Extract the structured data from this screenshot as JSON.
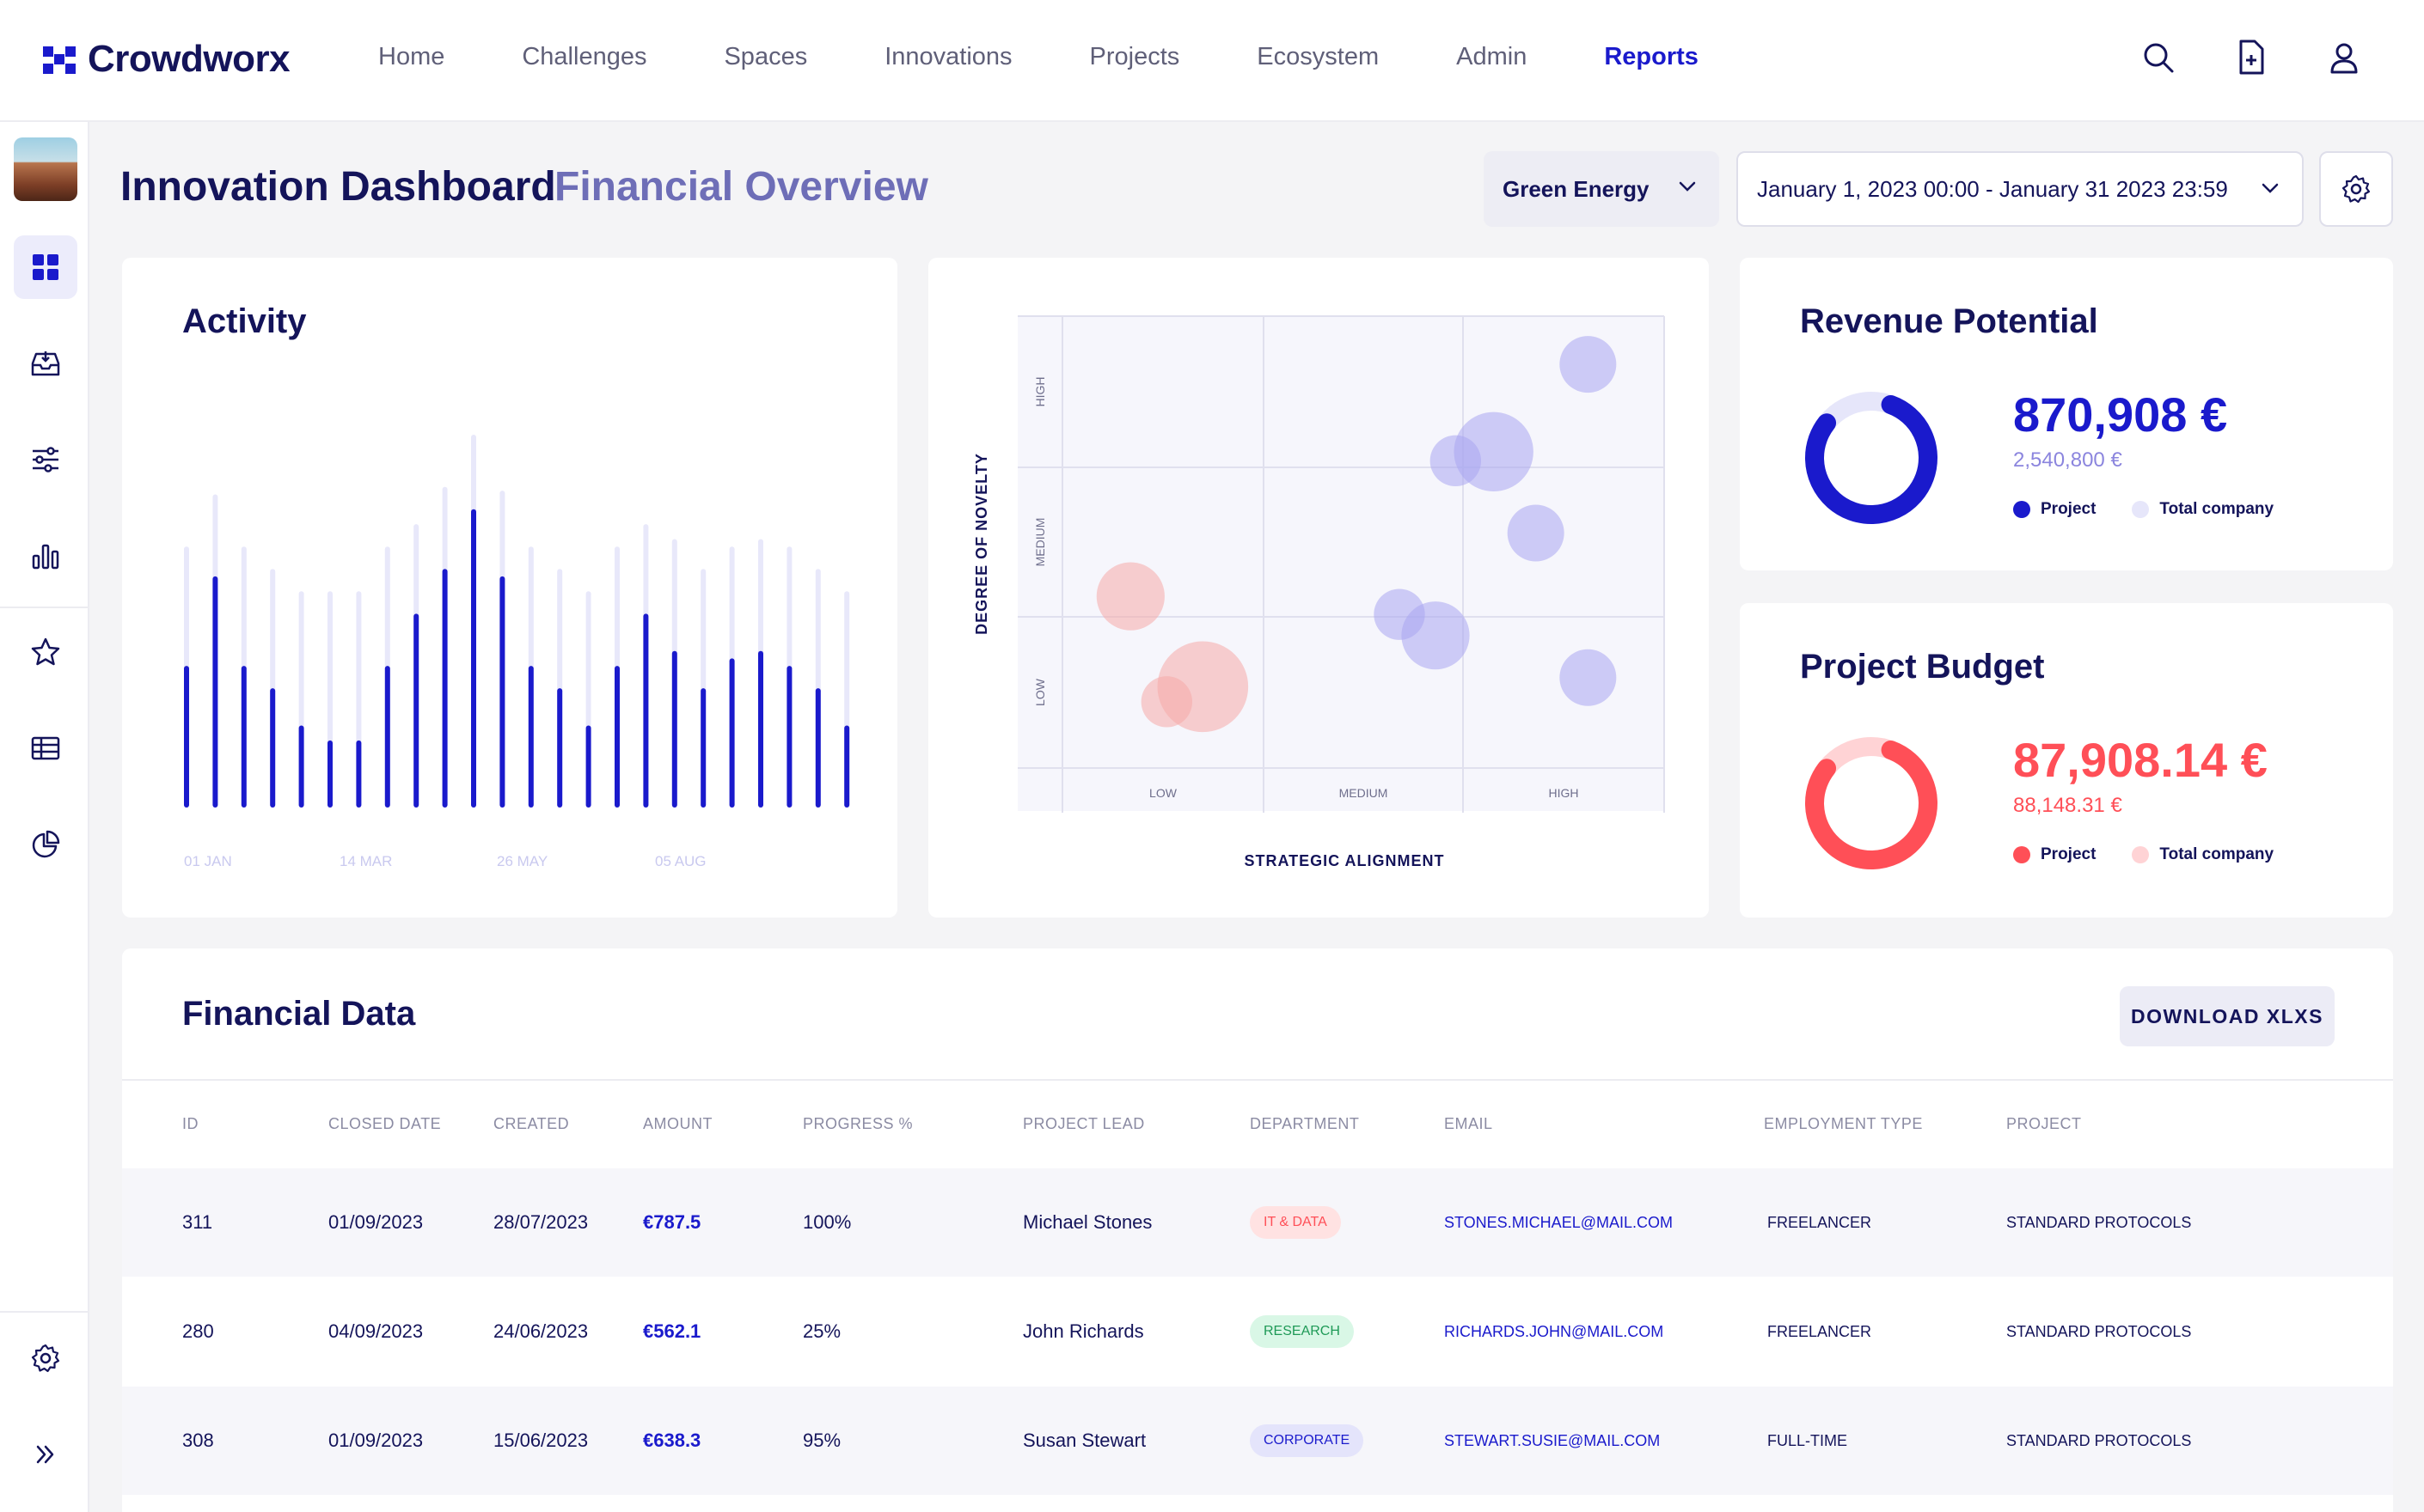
{
  "brand": {
    "name": "Crowdworx",
    "accent": "#1a1acc"
  },
  "nav": {
    "items": [
      "Home",
      "Challenges",
      "Spaces",
      "Innovations",
      "Projects",
      "Ecosystem",
      "Admin",
      "Reports"
    ],
    "active": "Reports"
  },
  "top_icons": [
    "search-icon",
    "new-document-icon",
    "user-icon"
  ],
  "sidebar": {
    "icons": [
      "dashboard-icon",
      "inbox-icon",
      "sliders-icon",
      "bar-chart-icon",
      "star-icon",
      "table-icon",
      "pie-chart-icon",
      "settings-icon",
      "expand-icon"
    ],
    "active": "dashboard-icon"
  },
  "header": {
    "title": "Innovation Dashboard",
    "subtitle": "Financial Overview",
    "filter": "Green Energy",
    "date_range": "January 1, 2023 00:00 - January 31 2023 23:59"
  },
  "activity": {
    "title": "Activity",
    "x_labels": [
      "01 JAN",
      "14 MAR",
      "26 MAY",
      "05 AUG"
    ]
  },
  "scatter": {
    "xlabel": "STRATEGIC ALIGNMENT",
    "ylabel": "DEGREE OF NOVELTY",
    "x_ticks": [
      "LOW",
      "MEDIUM",
      "HIGH"
    ],
    "y_ticks": [
      "LOW",
      "MEDIUM",
      "HIGH"
    ]
  },
  "revenue": {
    "title": "Revenue Potential",
    "value": "870,908 €",
    "total": "2,540,800 €",
    "legend_project": "Project",
    "legend_total": "Total company",
    "fraction": 0.8,
    "color": "#1a1acc",
    "track_color": "#e6e6fa"
  },
  "budget": {
    "title": "Project Budget",
    "value": "87,908.14 €",
    "total": "88,148.31 €",
    "legend_project": "Project",
    "legend_total": "Total company",
    "fraction": 0.8,
    "color": "#ff4f57",
    "track_color": "#ffd3d5"
  },
  "financial": {
    "title": "Financial Data",
    "download_label": "DOWNLOAD XLXS",
    "columns": [
      "ID",
      "CLOSED DATE",
      "CREATED",
      "AMOUNT",
      "PROGRESS %",
      "PROJECT LEAD",
      "DEPARTMENT",
      "EMAIL",
      "EMPLOYMENT TYPE",
      "PROJECT"
    ],
    "rows": [
      {
        "id": "311",
        "closed": "01/09/2023",
        "created": "28/07/2023",
        "amount": "€787.5",
        "progress": "100%",
        "lead": "Michael Stones",
        "department": "IT & DATA",
        "dept_kind": "it",
        "email": "STONES.MICHAEL@MAIL.COM",
        "employment": "FREELANCER",
        "project": "STANDARD PROTOCOLS"
      },
      {
        "id": "280",
        "closed": "04/09/2023",
        "created": "24/06/2023",
        "amount": "€562.1",
        "progress": "25%",
        "lead": "John Richards",
        "department": "RESEARCH",
        "dept_kind": "research",
        "email": "RICHARDS.JOHN@MAIL.COM",
        "employment": "FREELANCER",
        "project": "STANDARD PROTOCOLS"
      },
      {
        "id": "308",
        "closed": "01/09/2023",
        "created": "15/06/2023",
        "amount": "€638.3",
        "progress": "95%",
        "lead": "Susan Stewart",
        "department": "CORPORATE",
        "dept_kind": "corporate",
        "email": "STEWART.SUSIE@MAIL.COM",
        "employment": "FULL-TIME",
        "project": "STANDARD PROTOCOLS"
      }
    ]
  },
  "chart_data": [
    {
      "type": "bar",
      "title": "Activity",
      "series": [
        {
          "values": [
            70,
            84,
            70,
            64,
            58,
            58,
            58,
            70,
            76,
            86,
            100,
            85,
            70,
            64,
            58,
            70,
            76,
            72,
            64,
            70,
            72,
            70,
            64,
            58
          ]
        },
        {
          "values": [
            38,
            62,
            38,
            32,
            22,
            18,
            18,
            38,
            52,
            64,
            80,
            62,
            38,
            32,
            22,
            38,
            52,
            42,
            32,
            40,
            42,
            38,
            32,
            22
          ]
        }
      ],
      "x_tick_labels": [
        "01 JAN",
        "14 MAR",
        "26 MAY",
        "05 AUG"
      ],
      "grid": false
    },
    {
      "type": "scatter",
      "xlabel": "STRATEGIC ALIGNMENT",
      "ylabel": "DEGREE OF NOVELTY",
      "x_categories": [
        "LOW",
        "MEDIUM",
        "HIGH"
      ],
      "y_categories": [
        "LOW",
        "MEDIUM",
        "HIGH"
      ],
      "xlim": [
        0,
        3
      ],
      "ylim": [
        0,
        3
      ],
      "grid": true,
      "points": [
        {
          "x": 2.62,
          "y": 2.68,
          "size": 1.0,
          "color": "#a9a6f0"
        },
        {
          "x": 2.15,
          "y": 2.1,
          "size": 1.4,
          "color": "#a9a6f0"
        },
        {
          "x": 1.96,
          "y": 2.04,
          "size": 0.9,
          "color": "#a9a6f0"
        },
        {
          "x": 2.36,
          "y": 1.56,
          "size": 1.0,
          "color": "#a9a6f0"
        },
        {
          "x": 1.68,
          "y": 1.02,
          "size": 0.9,
          "color": "#a9a6f0"
        },
        {
          "x": 1.86,
          "y": 0.88,
          "size": 1.2,
          "color": "#a9a6f0"
        },
        {
          "x": 2.62,
          "y": 0.6,
          "size": 1.0,
          "color": "#a9a6f0"
        },
        {
          "x": 0.34,
          "y": 1.14,
          "size": 1.2,
          "color": "#f6aaa8"
        },
        {
          "x": 0.7,
          "y": 0.54,
          "size": 1.6,
          "color": "#f6aaa8"
        },
        {
          "x": 0.52,
          "y": 0.44,
          "size": 0.9,
          "color": "#f6aaa8"
        }
      ]
    },
    {
      "type": "pie",
      "title": "Revenue Potential",
      "values": [
        870908,
        2540800
      ],
      "labels": [
        "Project",
        "Total company"
      ]
    },
    {
      "type": "pie",
      "title": "Project Budget",
      "values": [
        87908.14,
        88148.31
      ],
      "labels": [
        "Project",
        "Total company"
      ]
    }
  ]
}
